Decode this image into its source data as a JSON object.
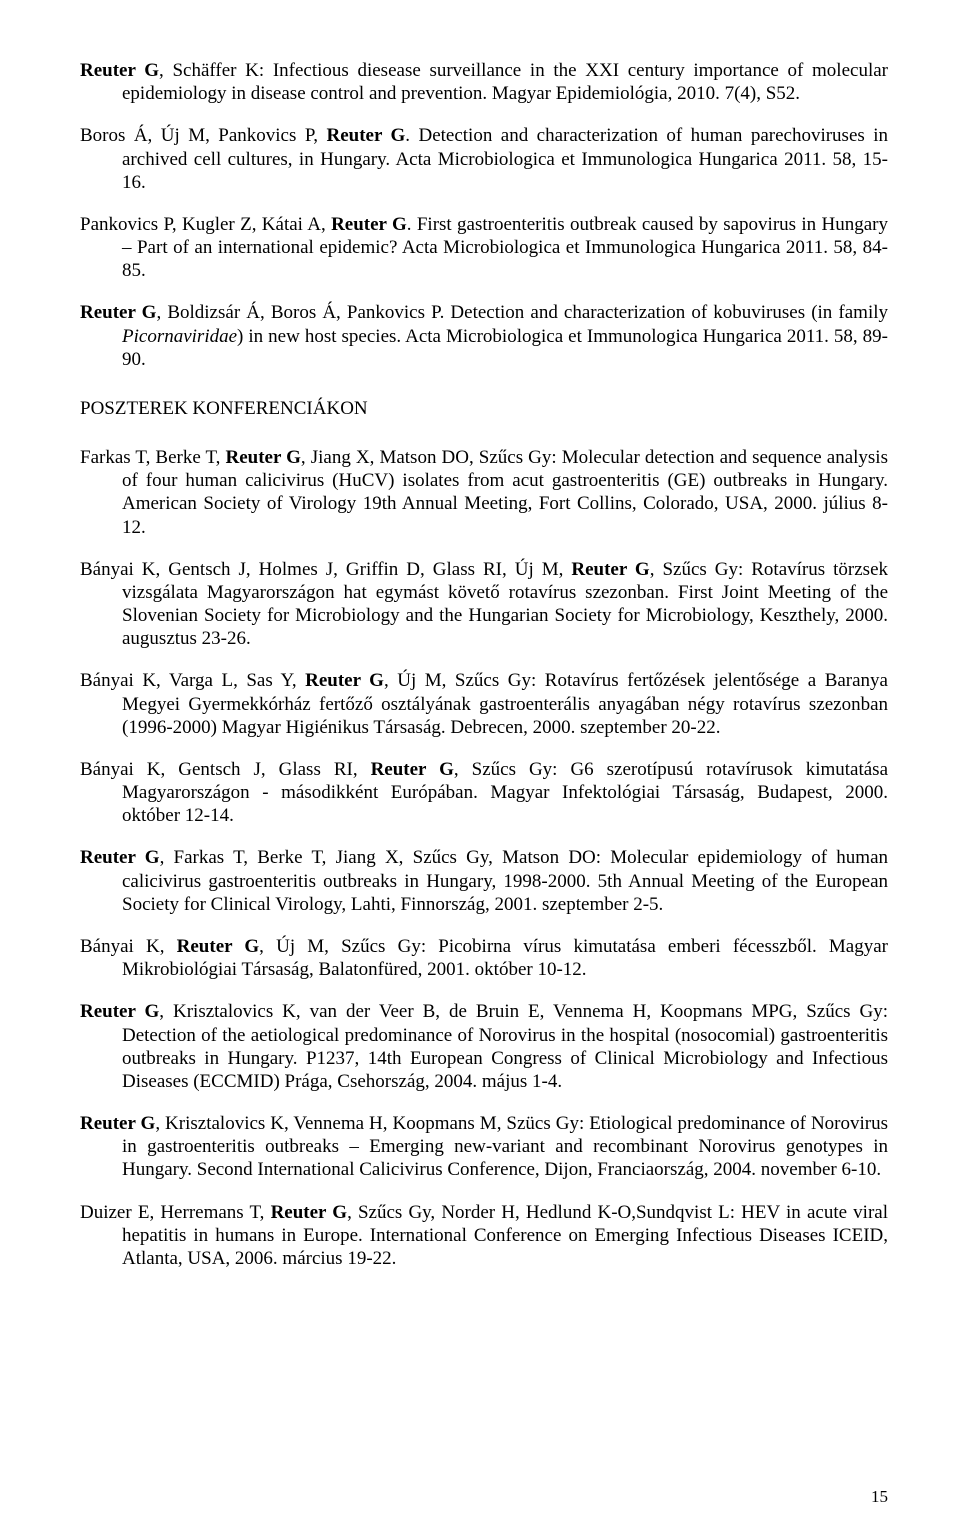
{
  "sectionHeading": "POSZTEREK KONFERENCIÁKON",
  "pageNumber": "15",
  "refsTop": [
    {
      "segments": [
        {
          "t": "Reuter G",
          "s": "bold"
        },
        {
          "t": ", Schäffer K: Infectious diesease surveillance in the XXI century importance of molecular epidemiology in disease control and prevention. Magyar Epidemiológia, 2010. 7(4), S52."
        }
      ]
    },
    {
      "segments": [
        {
          "t": "Boros Á, Új M, Pankovics P, "
        },
        {
          "t": "Reuter G",
          "s": "bold"
        },
        {
          "t": ". Detection and characterization of human parechoviruses in archived cell cultures, in Hungary. Acta Microbiologica et Immunologica Hungarica 2011. 58, 15-16."
        }
      ]
    },
    {
      "segments": [
        {
          "t": "Pankovics P, Kugler Z, Kátai A, "
        },
        {
          "t": "Reuter G",
          "s": "bold"
        },
        {
          "t": ". First gastroenteritis outbreak caused by sapovirus in Hungary – Part of an international epidemic? Acta Microbiologica et Immunologica Hungarica 2011. 58, 84-85."
        }
      ]
    },
    {
      "segments": [
        {
          "t": "Reuter G",
          "s": "bold"
        },
        {
          "t": ", Boldizsár Á, Boros Á, Pankovics P. Detection and characterization of kobuviruses (in family "
        },
        {
          "t": "Picornaviridae",
          "s": "italic"
        },
        {
          "t": ") in new host species. Acta Microbiologica et Immunologica Hungarica 2011. 58, 89-90."
        }
      ]
    }
  ],
  "refsBottom": [
    {
      "segments": [
        {
          "t": "Farkas T, Berke T, "
        },
        {
          "t": "Reuter G",
          "s": "bold"
        },
        {
          "t": ", Jiang X, Matson DO, Szűcs Gy: Molecular detection and sequence analysis of four human calicivirus (HuCV) isolates from acut gastroenteritis (GE) outbreaks in Hungary. American Society of Virology 19th Annual Meeting, Fort Collins, Colorado, USA, 2000. július 8-12."
        }
      ]
    },
    {
      "segments": [
        {
          "t": "Bányai K, Gentsch J, Holmes J, Griffin D, Glass RI, Új M, "
        },
        {
          "t": "Reuter G",
          "s": "bold"
        },
        {
          "t": ", Szűcs Gy: Rotavírus törzsek vizsgálata Magyarországon hat egymást követő rotavírus szezonban. First Joint Meeting of the Slovenian Society for Microbiology and the Hungarian Society for Microbiology, Keszthely, 2000. augusztus 23-26."
        }
      ]
    },
    {
      "segments": [
        {
          "t": "Bányai K, Varga L, Sas Y, "
        },
        {
          "t": "Reuter G",
          "s": "bold"
        },
        {
          "t": ", Új M, Szűcs Gy: Rotavírus fertőzések jelentősége a Baranya Megyei Gyermekkórház fertőző osztályának gastroenterális anyagában négy rotavírus szezonban (1996-2000) Magyar Higiénikus Társaság. Debrecen, 2000. szeptember 20-22."
        }
      ]
    },
    {
      "segments": [
        {
          "t": "Bányai K, Gentsch J, Glass RI, "
        },
        {
          "t": "Reuter G",
          "s": "bold"
        },
        {
          "t": ", Szűcs Gy: G6 szerotípusú rotavírusok kimutatása Magyarországon - másodikként Európában. Magyar Infektológiai Társaság, Budapest, 2000. október 12-14."
        }
      ]
    },
    {
      "segments": [
        {
          "t": "Reuter G",
          "s": "bold"
        },
        {
          "t": ", Farkas T, Berke T, Jiang X, Szűcs Gy, Matson DO: Molecular epidemiology of human calicivirus gastroenteritis outbreaks in Hungary, 1998-2000. 5th Annual Meeting of the European Society for Clinical Virology, Lahti, Finnország, 2001. szeptember 2-5."
        }
      ]
    },
    {
      "segments": [
        {
          "t": "Bányai K, "
        },
        {
          "t": "Reuter G",
          "s": "bold"
        },
        {
          "t": ", Új M, Szűcs Gy: Picobirna vírus kimutatása emberi fécesszből. Magyar Mikrobiológiai Társaság, Balatonfüred, 2001. október 10-12."
        }
      ]
    },
    {
      "segments": [
        {
          "t": "Reuter G",
          "s": "bold"
        },
        {
          "t": ", Krisztalovics K, van der Veer B, de Bruin E, Vennema H, Koopmans MPG, Szűcs Gy: Detection of the aetiological predominance of Norovirus in the hospital (nosocomial) gastroenteritis outbreaks in Hungary. P1237, 14th European Congress of Clinical Microbiology and Infectious Diseases (ECCMID) Prága, Csehország, 2004. május 1-4."
        }
      ]
    },
    {
      "segments": [
        {
          "t": "Reuter G",
          "s": "bold"
        },
        {
          "t": ", Krisztalovics K, Vennema H, Koopmans M, Szücs Gy: Etiological predominance of Norovirus in gastroenteritis outbreaks – Emerging new-variant and recombinant Norovirus genotypes in Hungary. Second International Calicivirus Conference, Dijon, Franciaország, 2004. november 6-10."
        }
      ]
    },
    {
      "segments": [
        {
          "t": "Duizer E, Herremans T, "
        },
        {
          "t": "Reuter G",
          "s": "bold"
        },
        {
          "t": ", Szűcs Gy, Norder H, Hedlund K-O,Sundqvist L: HEV in acute viral hepatitis in humans in Europe. International Conference on Emerging Infectious Diseases ICEID, Atlanta, USA, 2006. március 19-22."
        }
      ]
    }
  ]
}
